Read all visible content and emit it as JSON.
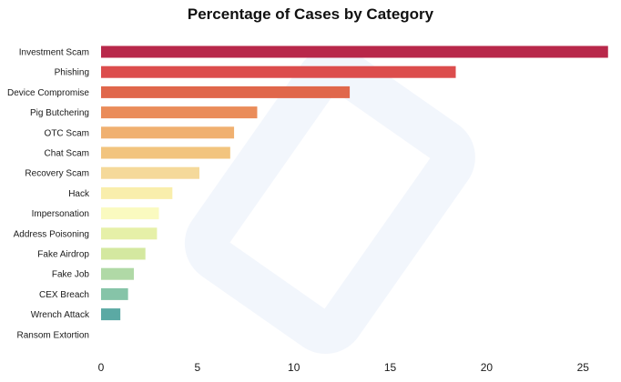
{
  "chart_data": {
    "type": "bar",
    "orientation": "horizontal",
    "title": "Percentage of Cases by Category",
    "xlabel": "",
    "ylabel": "",
    "xlim": [
      0,
      26.5
    ],
    "xticks": [
      0,
      5,
      10,
      15,
      20,
      25
    ],
    "grid": false,
    "categories": [
      "Investment Scam",
      "Phishing",
      "Device Compromise",
      "Pig Butchering",
      "OTC Scam",
      "Chat Scam",
      "Recovery Scam",
      "Hack",
      "Impersonation",
      "Address Poisoning",
      "Fake Airdrop",
      "Fake Job",
      "CEX Breach",
      "Wrench Attack",
      "Ransom Extortion"
    ],
    "values": [
      26.3,
      18.4,
      12.9,
      8.1,
      6.9,
      6.7,
      5.1,
      3.7,
      3.0,
      2.9,
      2.3,
      1.7,
      1.4,
      1.0,
      0.0
    ],
    "colors": [
      "#b8284a",
      "#dc4d4d",
      "#e0674b",
      "#ea8c5a",
      "#f0b070",
      "#f2c47e",
      "#f5d99a",
      "#f9eeac",
      "#fafac0",
      "#e6f0a8",
      "#d4e8a0",
      "#b0d9a6",
      "#86c4a8",
      "#5ba9a4",
      "#3d7fb0"
    ]
  }
}
